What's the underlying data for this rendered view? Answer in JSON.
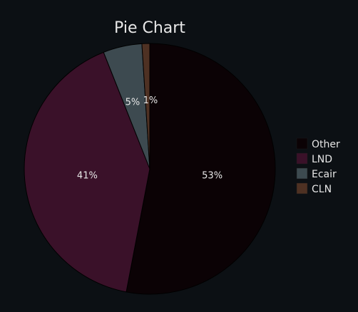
{
  "chart_data": {
    "type": "pie",
    "title": "Pie Chart",
    "categories": [
      "Other",
      "LND",
      "Ecair",
      "CLN"
    ],
    "values": [
      53,
      41,
      5,
      1
    ],
    "labels": [
      "53%",
      "41%",
      "5%",
      "1%"
    ],
    "colors": [
      "#0b0205",
      "#3a1129",
      "#3d4a50",
      "#4e3123"
    ],
    "legend_position": "right",
    "direction": "clockwise",
    "start_angle": "top"
  }
}
